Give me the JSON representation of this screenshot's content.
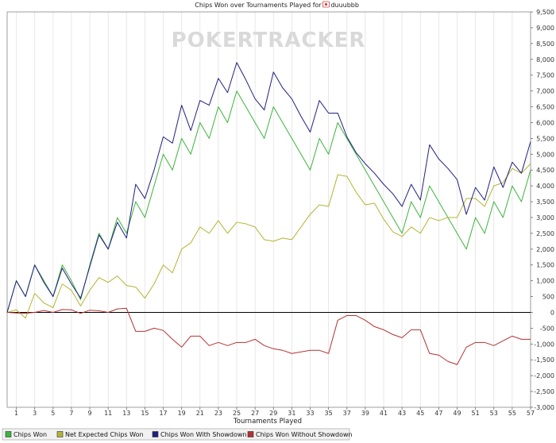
{
  "chart_data": {
    "type": "line",
    "title": "Chips Won over Tournaments Played for ",
    "player": "duuubbb",
    "watermark": "POKERTRACKER",
    "xlabel": "Tournaments Played",
    "ylabel": "",
    "xlim": [
      0,
      57
    ],
    "ylim": [
      -3000,
      9500
    ],
    "x_ticks": [
      1,
      3,
      5,
      7,
      9,
      11,
      13,
      15,
      17,
      19,
      21,
      23,
      25,
      27,
      29,
      31,
      33,
      35,
      37,
      39,
      41,
      43,
      45,
      47,
      49,
      51,
      53,
      55,
      57
    ],
    "y_ticks": [
      -3000,
      -2500,
      -2000,
      -1500,
      -1000,
      -500,
      0,
      500,
      1000,
      1500,
      2000,
      2500,
      3000,
      3500,
      4000,
      4500,
      5000,
      5500,
      6000,
      6500,
      7000,
      7500,
      8000,
      8500,
      9000,
      9500
    ],
    "y_tick_labels": [
      "-3,000",
      "-2,500",
      "-2,000",
      "-1,500",
      "-1,000",
      "-500",
      "0",
      "500",
      "1,000",
      "1,500",
      "2,000",
      "2,500",
      "3,000",
      "3,500",
      "4,000",
      "4,500",
      "5,000",
      "5,500",
      "6,000",
      "6,500",
      "7,000",
      "7,500",
      "8,000",
      "8,500",
      "9,000",
      "9,500"
    ],
    "grid": "vertical",
    "legend_position": "bottom",
    "series": [
      {
        "name": "Chips Won",
        "color": "#3cb43c",
        "values": [
          0,
          1000,
          500,
          1500,
          1000,
          500,
          1500,
          1000,
          400,
          1500,
          2500,
          2000,
          3000,
          2500,
          3500,
          3000,
          4000,
          5000,
          4500,
          5500,
          5000,
          6000,
          5500,
          6500,
          6000,
          7000,
          6500,
          6000,
          5500,
          6500,
          6000,
          5500,
          5000,
          4500,
          5500,
          5000,
          6000,
          5500,
          5000,
          4500,
          4000,
          3500,
          3000,
          2500,
          3500,
          3000,
          4000,
          3500,
          3000,
          2500,
          2000,
          3000,
          2500,
          3500,
          3000,
          4000,
          3500,
          4500
        ]
      },
      {
        "name": "Net Expected Chips Won",
        "color": "#b4b432",
        "values": [
          0,
          80,
          -180,
          600,
          300,
          150,
          900,
          700,
          200,
          700,
          1100,
          950,
          1150,
          850,
          800,
          450,
          900,
          1500,
          1250,
          2000,
          2200,
          2700,
          2500,
          2900,
          2500,
          2850,
          2800,
          2700,
          2300,
          2250,
          2350,
          2300,
          2700,
          3100,
          3400,
          3350,
          4350,
          4300,
          3800,
          3400,
          3450,
          2950,
          2550,
          2400,
          2700,
          2500,
          3000,
          2900,
          3000,
          3000,
          3600,
          3600,
          3350,
          4000,
          4100,
          4550,
          4400,
          4700
        ]
      },
      {
        "name": "Chips Won With Showdown",
        "color": "#202080",
        "values": [
          0,
          1000,
          500,
          1500,
          950,
          500,
          1400,
          900,
          450,
          1450,
          2450,
          2000,
          2850,
          2350,
          4050,
          3600,
          4500,
          5550,
          5350,
          6550,
          5750,
          6700,
          6550,
          7400,
          6950,
          7900,
          7350,
          6750,
          6400,
          7600,
          7100,
          6750,
          6200,
          5700,
          6700,
          6300,
          6300,
          5550,
          5050,
          4700,
          4400,
          4050,
          3750,
          3350,
          4050,
          3550,
          5300,
          4850,
          4550,
          4200,
          3100,
          3950,
          3550,
          4600,
          3950,
          4750,
          4400,
          5400
        ]
      },
      {
        "name": "Chips Won Without Showdown",
        "color": "#b43232",
        "values": [
          0,
          -20,
          -30,
          0,
          60,
          0,
          90,
          80,
          -30,
          70,
          50,
          0,
          110,
          130,
          -600,
          -600,
          -500,
          -570,
          -850,
          -1100,
          -750,
          -750,
          -1050,
          -950,
          -1050,
          -950,
          -950,
          -850,
          -1050,
          -1150,
          -1200,
          -1300,
          -1250,
          -1200,
          -1200,
          -1300,
          -250,
          -100,
          -100,
          -250,
          -450,
          -550,
          -700,
          -800,
          -550,
          -550,
          -1300,
          -1350,
          -1550,
          -1650,
          -1100,
          -950,
          -950,
          -1050,
          -900,
          -750,
          -850,
          -850
        ]
      }
    ]
  }
}
